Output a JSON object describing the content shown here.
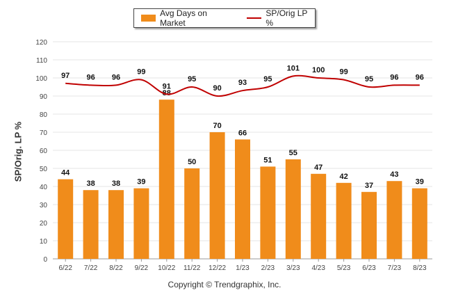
{
  "chart_data": {
    "type": "bar",
    "categories": [
      "6/22",
      "7/22",
      "8/22",
      "9/22",
      "10/22",
      "11/22",
      "12/22",
      "1/23",
      "2/23",
      "3/23",
      "4/23",
      "5/23",
      "6/23",
      "7/23",
      "8/23"
    ],
    "series": [
      {
        "name": "Avg Days on Market",
        "type": "bar",
        "color": "#f08c1b",
        "values": [
          44,
          38,
          38,
          39,
          88,
          50,
          70,
          66,
          51,
          55,
          47,
          42,
          37,
          43,
          39
        ]
      },
      {
        "name": "SP/Orig LP %",
        "type": "line",
        "color": "#c00000",
        "values": [
          97,
          96,
          96,
          99,
          91,
          95,
          90,
          93,
          95,
          101,
          100,
          99,
          95,
          96,
          96
        ]
      }
    ],
    "ylabel": "SP/Orig. LP %",
    "ylim": [
      0,
      120
    ],
    "yticks": [
      0,
      10,
      20,
      30,
      40,
      50,
      60,
      70,
      80,
      90,
      100,
      110,
      120
    ],
    "grid": true,
    "legend_position": "top-center"
  },
  "legend": {
    "bar_label": "Avg Days on Market",
    "line_label": "SP/Orig LP %"
  },
  "footer": {
    "credit": "Copyright © Trendgraphix, Inc."
  }
}
